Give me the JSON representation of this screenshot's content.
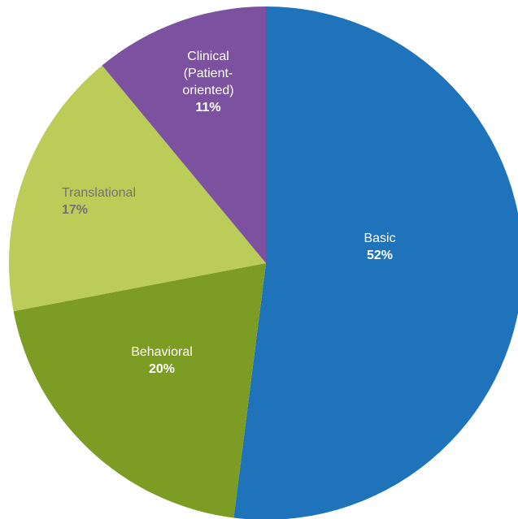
{
  "chart_data": {
    "type": "pie",
    "title": "",
    "slices": [
      {
        "label_lines": [
          "Basic"
        ],
        "percent_label": "52%",
        "value": 52,
        "color": "#1f73bb",
        "text_color": "#ffffff"
      },
      {
        "label_lines": [
          "Behavioral"
        ],
        "percent_label": "20%",
        "value": 20,
        "color": "#7d9c23",
        "text_color": "#ffffff"
      },
      {
        "label_lines": [
          "Translational"
        ],
        "percent_label": "17%",
        "value": 17,
        "color": "#bbcc58",
        "text_color": "#727272"
      },
      {
        "label_lines": [
          "Clinical",
          "(Patient-",
          "oriented)"
        ],
        "percent_label": "11%",
        "value": 11,
        "color": "#7c51a0",
        "text_color": "#ffffff"
      }
    ],
    "start_angle_deg": 0,
    "direction": "clockwise",
    "legend": "none"
  }
}
